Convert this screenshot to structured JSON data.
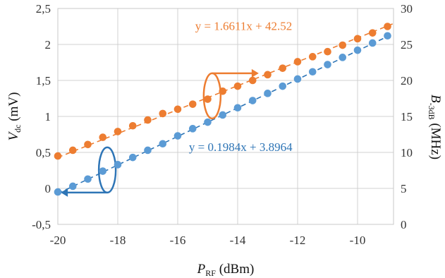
{
  "chart_data": {
    "type": "scatter",
    "xlabel_main": "P",
    "xlabel_sub": "RF",
    "xlabel_unit": " (dBm)",
    "ylabel_left_main": "V",
    "ylabel_left_sub": "dc",
    "ylabel_left_unit": " (mV)",
    "ylabel_right_main": "B",
    "ylabel_right_sub": "-3dB",
    "ylabel_right_unit": " (MHz)",
    "xlim": [
      -20,
      -8.8
    ],
    "ylim_left": [
      -0.5,
      2.5
    ],
    "ylim_right": [
      0,
      30
    ],
    "x_ticks": [
      -20,
      -18,
      -16,
      -14,
      -12,
      -10
    ],
    "x_tick_labels": [
      "-20",
      "-18",
      "-16",
      "-14",
      "-12",
      "-10"
    ],
    "y_left_ticks": [
      -0.5,
      0,
      0.5,
      1,
      1.5,
      2,
      2.5
    ],
    "y_left_tick_labels": [
      "-0,5",
      "0",
      "0,5",
      "1",
      "1,5",
      "2",
      "2,5"
    ],
    "y_right_ticks": [
      0,
      5,
      10,
      15,
      20,
      25,
      30
    ],
    "y_right_tick_labels": [
      "0",
      "5",
      "10",
      "15",
      "20",
      "25",
      "30"
    ],
    "grid": true,
    "series": [
      {
        "axis": "left",
        "color": "#5B9BD5",
        "trend_color": "#2E75B6",
        "x": [
          -20,
          -19.5,
          -19,
          -18.5,
          -18,
          -17.5,
          -17,
          -16.5,
          -16,
          -15.5,
          -15,
          -14.5,
          -14,
          -13.5,
          -13,
          -12.5,
          -12,
          -11.5,
          -11,
          -10.5,
          -10,
          -9.5,
          -9
        ],
        "y": [
          -0.05,
          0.03,
          0.13,
          0.24,
          0.33,
          0.43,
          0.53,
          0.62,
          0.73,
          0.83,
          0.92,
          1.02,
          1.12,
          1.22,
          1.32,
          1.42,
          1.52,
          1.62,
          1.72,
          1.82,
          1.92,
          2.02,
          2.12
        ],
        "trendline_label": "y = 0.1984x + 3.8964",
        "trendline": {
          "slope": 0.1984,
          "intercept": 3.8964
        }
      },
      {
        "axis": "right",
        "color": "#ED7D31",
        "trend_color": "#ED7D31",
        "x": [
          -20,
          -19.5,
          -19,
          -18.5,
          -18,
          -17.5,
          -17,
          -16.5,
          -16,
          -15.5,
          -15,
          -14.5,
          -14,
          -13.5,
          -13,
          -12.5,
          -12,
          -11.5,
          -11,
          -10.5,
          -10,
          -9.5,
          -9
        ],
        "y": [
          9.5,
          10.3,
          11.1,
          12.1,
          12.9,
          13.7,
          14.5,
          15.4,
          16.0,
          16.7,
          17.4,
          18.5,
          19.2,
          20.0,
          20.8,
          21.7,
          22.6,
          23.3,
          24.0,
          24.9,
          25.8,
          26.6,
          27.5
        ],
        "trendline_label": "y = 1.6611x + 42.52",
        "trendline": {
          "slope": 1.6611,
          "intercept": 42.52
        }
      }
    ],
    "axis_indicators": [
      {
        "series_index": 1,
        "points_to": "right",
        "color": "#ED7D31",
        "at_x": -14.85
      },
      {
        "series_index": 0,
        "points_to": "left",
        "color": "#2E75B6",
        "at_x": -18.35
      }
    ]
  }
}
